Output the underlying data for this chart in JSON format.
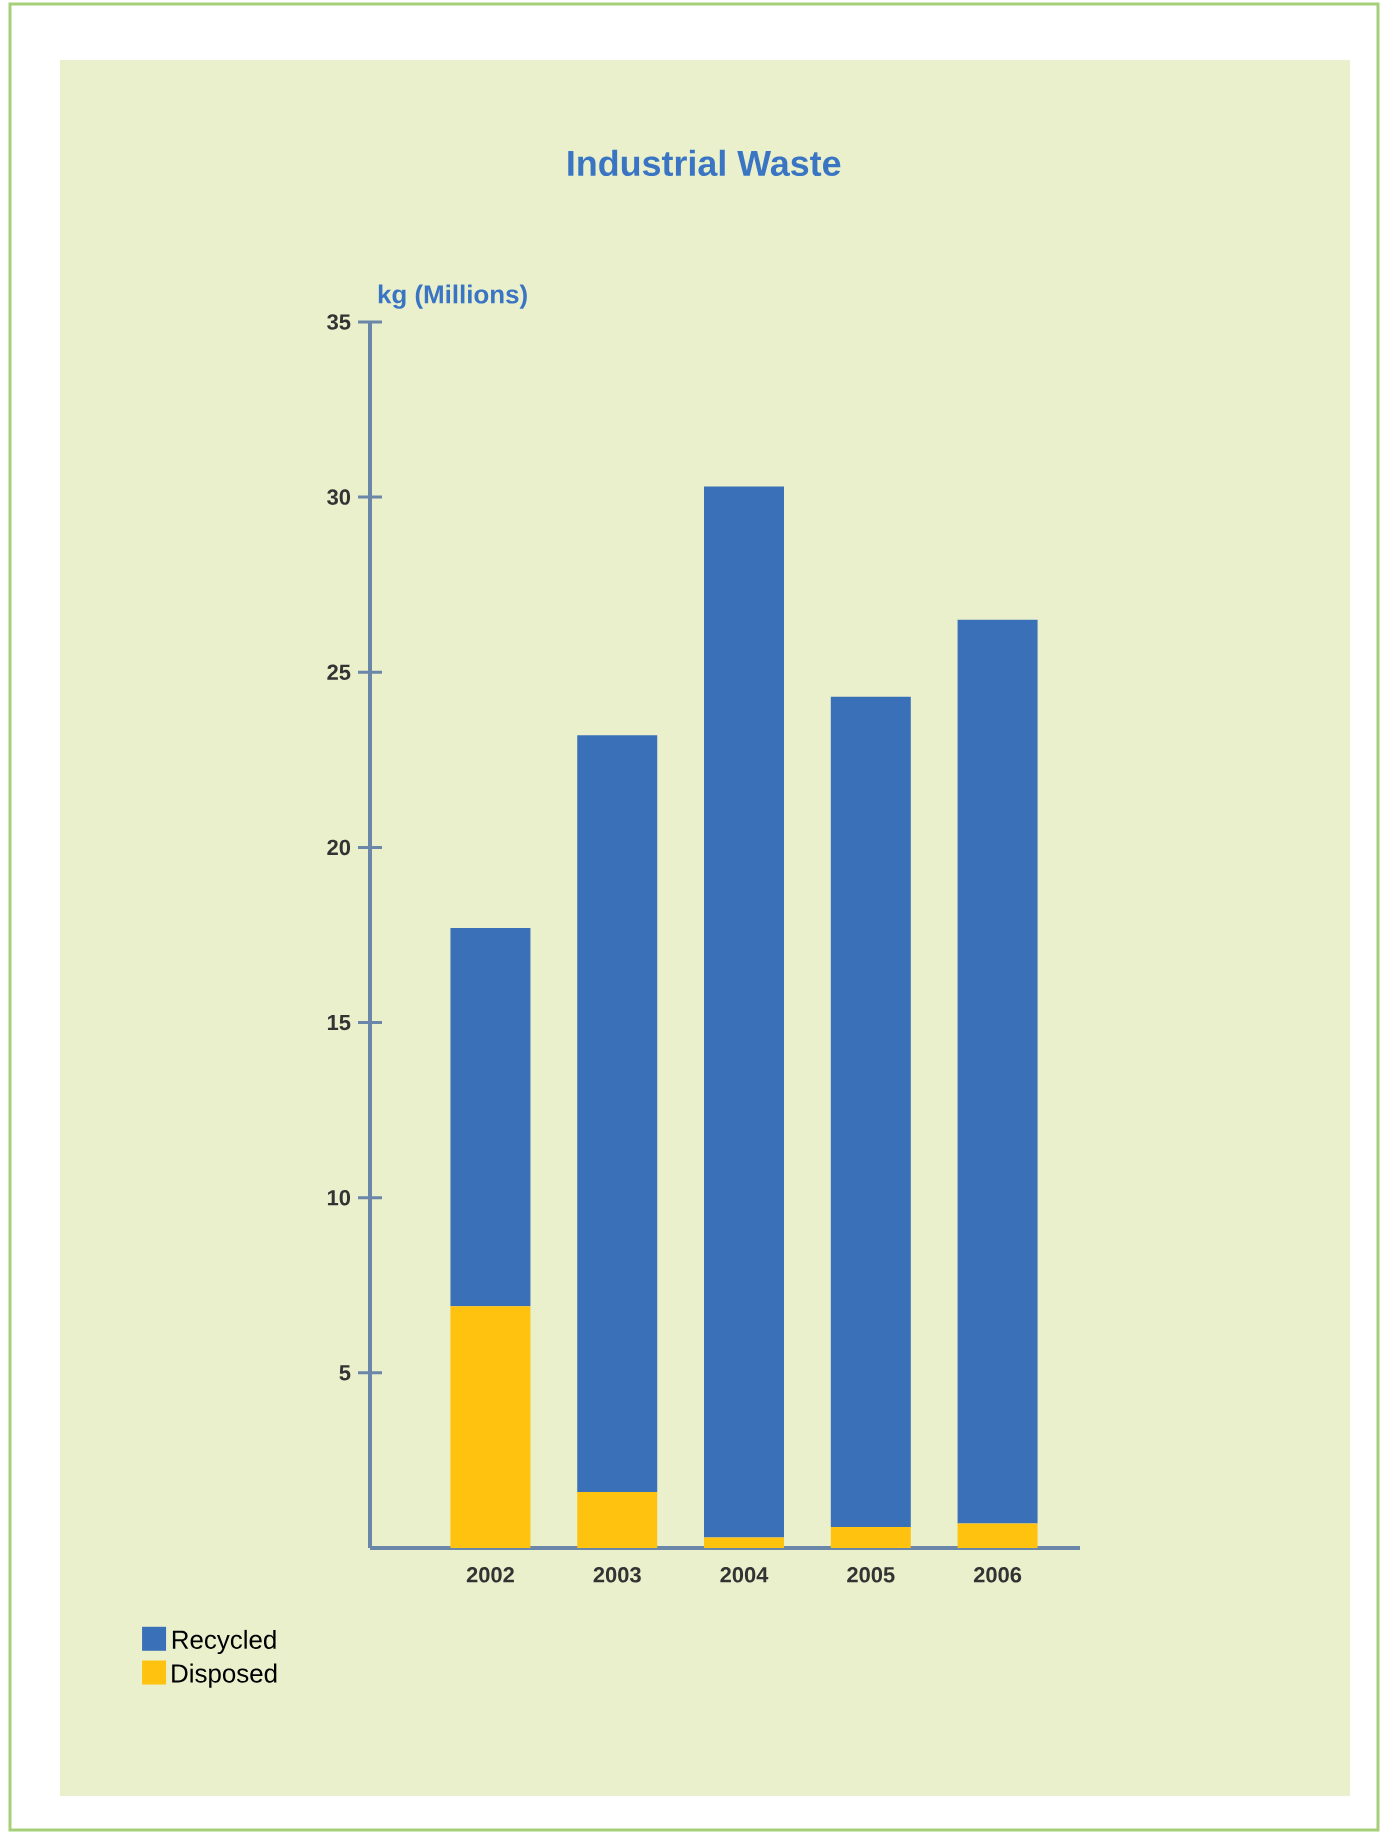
{
  "chart_data": {
    "type": "bar",
    "title": "Industrial Waste",
    "ylabel": "kg (Millions)",
    "categories": [
      "2002",
      "2003",
      "2004",
      "2005",
      "2006"
    ],
    "series": [
      {
        "name": "Disposed",
        "color": "#ffc20e",
        "values": [
          6.9,
          1.6,
          0.3,
          0.6,
          0.7
        ]
      },
      {
        "name": "Recycled",
        "color": "#3a70b8",
        "values": [
          10.8,
          21.6,
          30.0,
          23.7,
          25.8
        ]
      }
    ],
    "stacked": true,
    "ylim": [
      0,
      35
    ],
    "yticks": [
      5,
      10,
      15,
      20,
      25,
      30,
      35
    ],
    "legend": "bottom left"
  }
}
